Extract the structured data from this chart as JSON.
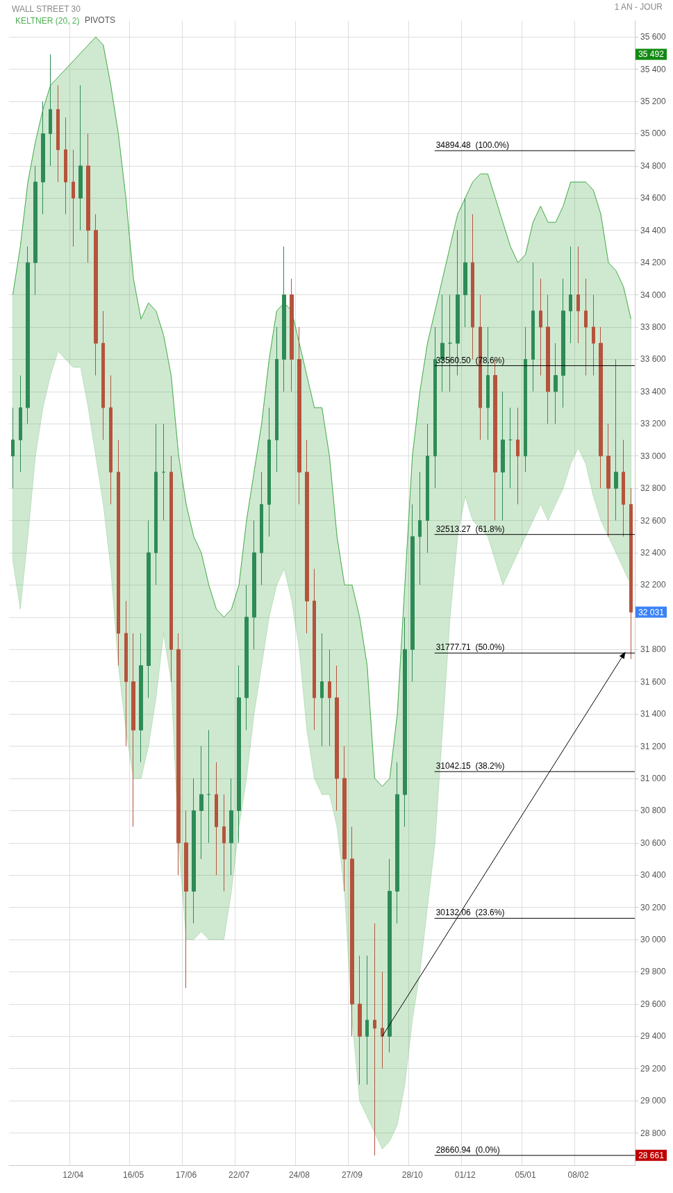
{
  "chart_data": {
    "type": "candlestick",
    "title": "WALL STREET 30",
    "annotations": [
      "1 AN - JOUR",
      "PIVOTS",
      "35 492",
      "32 031",
      "28 661"
    ],
    "categories": [
      null,
      null,
      null,
      null,
      null,
      null,
      null,
      null,
      "12/04",
      null,
      null,
      null,
      null,
      null,
      null,
      null,
      "16/05",
      null,
      null,
      null,
      null,
      null,
      null,
      "17/06",
      null,
      null,
      null,
      null,
      null,
      null,
      "22/07",
      null,
      null,
      null,
      null,
      null,
      null,
      null,
      "24/08",
      null,
      null,
      null,
      null,
      null,
      null,
      "27/09",
      null,
      null,
      null,
      null,
      null,
      null,
      null,
      "28/10",
      null,
      null,
      null,
      null,
      null,
      null,
      "01/12",
      null,
      null,
      null,
      null,
      null,
      null,
      null,
      "05/01",
      null,
      null,
      null,
      null,
      null,
      null,
      "08/02",
      null,
      null,
      null,
      null,
      null,
      null,
      null
    ],
    "ohlc": [
      [
        33000,
        33300,
        32800,
        33100
      ],
      [
        33100,
        33500,
        32900,
        33300
      ],
      [
        33300,
        34300,
        33200,
        34200
      ],
      [
        34200,
        34800,
        34000,
        34700
      ],
      [
        34700,
        35200,
        34500,
        35000
      ],
      [
        35000,
        35492,
        34800,
        35150
      ],
      [
        35150,
        35300,
        34700,
        34900
      ],
      [
        34900,
        35100,
        34500,
        34700
      ],
      [
        34700,
        34900,
        34300,
        34600
      ],
      [
        34600,
        35300,
        34400,
        34800
      ],
      [
        34800,
        35000,
        34200,
        34400
      ],
      [
        34400,
        34500,
        33500,
        33700
      ],
      [
        33700,
        33900,
        33100,
        33300
      ],
      [
        33300,
        33500,
        32700,
        32900
      ],
      [
        32900,
        33100,
        31700,
        31900
      ],
      [
        31900,
        32100,
        31200,
        31600
      ],
      [
        31600,
        31900,
        30700,
        31300
      ],
      [
        31300,
        31900,
        31100,
        31700
      ],
      [
        31700,
        32600,
        31500,
        32400
      ],
      [
        32400,
        33200,
        32200,
        32900
      ],
      [
        32900,
        33200,
        32600,
        32900
      ],
      [
        32900,
        33000,
        31600,
        31800
      ],
      [
        31800,
        31900,
        30400,
        30600
      ],
      [
        30600,
        30800,
        29700,
        30300
      ],
      [
        30300,
        31000,
        30100,
        30800
      ],
      [
        30800,
        31200,
        30500,
        30900
      ],
      [
        30900,
        31300,
        30600,
        30900
      ],
      [
        30900,
        31100,
        30400,
        30700
      ],
      [
        30700,
        30900,
        30300,
        30600
      ],
      [
        30600,
        31000,
        30400,
        30800
      ],
      [
        30800,
        31700,
        30600,
        31500
      ],
      [
        31500,
        32200,
        31300,
        32000
      ],
      [
        32000,
        32600,
        31800,
        32400
      ],
      [
        32400,
        32900,
        32200,
        32700
      ],
      [
        32700,
        33300,
        32500,
        33100
      ],
      [
        33100,
        33800,
        32900,
        33600
      ],
      [
        33600,
        34300,
        33400,
        34000
      ],
      [
        34000,
        34100,
        33400,
        33600
      ],
      [
        33600,
        33800,
        32700,
        32900
      ],
      [
        32900,
        33100,
        31900,
        32100
      ],
      [
        32100,
        32300,
        31300,
        31500
      ],
      [
        31500,
        31900,
        31200,
        31600
      ],
      [
        31600,
        31800,
        31200,
        31500
      ],
      [
        31500,
        31700,
        30800,
        31000
      ],
      [
        31000,
        31200,
        30300,
        30500
      ],
      [
        30500,
        30700,
        29400,
        29600
      ],
      [
        29600,
        29900,
        29100,
        29400
      ],
      [
        29400,
        29900,
        29100,
        29500
      ],
      [
        29500,
        30100,
        28661,
        29450
      ],
      [
        29450,
        29800,
        29200,
        29400
      ],
      [
        29400,
        30500,
        29300,
        30300
      ],
      [
        30300,
        31100,
        30100,
        30900
      ],
      [
        30900,
        32000,
        30700,
        31800
      ],
      [
        31800,
        32700,
        31600,
        32500
      ],
      [
        32500,
        32900,
        32200,
        32600
      ],
      [
        32600,
        33200,
        32400,
        33000
      ],
      [
        33000,
        33800,
        32800,
        33600
      ],
      [
        33600,
        34000,
        33400,
        33700
      ],
      [
        33700,
        34000,
        33400,
        33700
      ],
      [
        33700,
        34400,
        33500,
        34000
      ],
      [
        34000,
        34600,
        33800,
        34200
      ],
      [
        34200,
        34500,
        33600,
        33800
      ],
      [
        33800,
        34000,
        33100,
        33300
      ],
      [
        33300,
        33800,
        33100,
        33500
      ],
      [
        33500,
        33600,
        32600,
        32900
      ],
      [
        32900,
        33400,
        32600,
        33100
      ],
      [
        33100,
        33300,
        32800,
        33100
      ],
      [
        33100,
        33300,
        32700,
        33000
      ],
      [
        33000,
        33800,
        32900,
        33600
      ],
      [
        33600,
        34200,
        33400,
        33900
      ],
      [
        33900,
        34100,
        33500,
        33800
      ],
      [
        33800,
        34000,
        33200,
        33400
      ],
      [
        33400,
        33700,
        33200,
        33500
      ],
      [
        33500,
        34100,
        33300,
        33900
      ],
      [
        33900,
        34300,
        33700,
        34000
      ],
      [
        34000,
        34300,
        33700,
        33900
      ],
      [
        33900,
        34100,
        33500,
        33800
      ],
      [
        33800,
        34000,
        33500,
        33700
      ],
      [
        33700,
        33800,
        32800,
        33000
      ],
      [
        33000,
        33200,
        32500,
        32800
      ],
      [
        32800,
        33600,
        32600,
        32900
      ],
      [
        32900,
        33100,
        32500,
        32700
      ],
      [
        32700,
        32800,
        31740,
        32031
      ]
    ],
    "colors": [
      "#2e8b57",
      "#2e8b57",
      "#2e8b57",
      "#2e8b57",
      "#2e8b57",
      "#2e8b57",
      "#b5533c",
      "#b5533c",
      "#b5533c",
      "#2e8b57",
      "#b5533c",
      "#b5533c",
      "#b5533c",
      "#b5533c",
      "#b5533c",
      "#b5533c",
      "#b5533c",
      "#2e8b57",
      "#2e8b57",
      "#2e8b57",
      "#2e8b57",
      "#b5533c",
      "#b5533c",
      "#b5533c",
      "#2e8b57",
      "#2e8b57",
      "#2e8b57",
      "#b5533c",
      "#b5533c",
      "#2e8b57",
      "#2e8b57",
      "#2e8b57",
      "#2e8b57",
      "#2e8b57",
      "#2e8b57",
      "#2e8b57",
      "#2e8b57",
      "#b5533c",
      "#b5533c",
      "#b5533c",
      "#b5533c",
      "#2e8b57",
      "#b5533c",
      "#b5533c",
      "#b5533c",
      "#b5533c",
      "#b5533c",
      "#2e8b57",
      "#b5533c",
      "#b5533c",
      "#2e8b57",
      "#2e8b57",
      "#2e8b57",
      "#2e8b57",
      "#2e8b57",
      "#2e8b57",
      "#2e8b57",
      "#2e8b57",
      "#2e8b57",
      "#2e8b57",
      "#2e8b57",
      "#b5533c",
      "#b5533c",
      "#2e8b57",
      "#b5533c",
      "#2e8b57",
      "#2e8b57",
      "#b5533c",
      "#2e8b57",
      "#2e8b57",
      "#b5533c",
      "#b5533c",
      "#2e8b57",
      "#2e8b57",
      "#2e8b57",
      "#b5533c",
      "#b5533c",
      "#b5533c",
      "#b5533c",
      "#b5533c",
      "#2e8b57",
      "#b5533c",
      "#b5533c"
    ],
    "series": [
      {
        "name": "KELTNER (20, 2)",
        "type": "line",
        "color": "#4caf50",
        "values": [
          34000,
          34300,
          34700,
          34950,
          35150,
          35300,
          35350,
          35400,
          35450,
          35500,
          35550,
          35600,
          35550,
          35300,
          35000,
          34600,
          34100,
          33850,
          33950,
          33900,
          33750,
          33500,
          33000,
          32700,
          32500,
          32400,
          32200,
          32050,
          32000,
          32050,
          32200,
          32600,
          32900,
          33200,
          33600,
          33900,
          33950,
          33900,
          33700,
          33500,
          33300,
          33300,
          33000,
          32500,
          32200,
          32200,
          32000,
          31700,
          31000,
          30950,
          31000,
          31400,
          32200,
          33000,
          33400,
          33700,
          33900,
          34100,
          34300,
          34500,
          34600,
          34700,
          34750,
          34750,
          34600,
          34450,
          34300,
          34200,
          34250,
          34450,
          34550,
          34450,
          34450,
          34550,
          34700,
          34700,
          34700,
          34650,
          34500,
          34200,
          34150,
          34050,
          33850
        ],
        "upper": [
          34000,
          34300,
          34700,
          34950,
          35150,
          35300,
          35350,
          35400,
          35450,
          35500,
          35550,
          35600,
          35550,
          35300,
          35000,
          34600,
          34100,
          33850,
          33950,
          33900,
          33750,
          33500,
          33000,
          32700,
          32500,
          32400,
          32200,
          32050,
          32000,
          32050,
          32200,
          32600,
          32900,
          33200,
          33600,
          33900,
          33950,
          33900,
          33700,
          33500,
          33300,
          33300,
          33000,
          32500,
          32200,
          32200,
          32000,
          31700,
          31000,
          30950,
          31000,
          31400,
          32200,
          33000,
          33400,
          33700,
          33900,
          34100,
          34300,
          34500,
          34600,
          34700,
          34750,
          34750,
          34600,
          34450,
          34300,
          34200,
          34250,
          34450,
          34550,
          34450,
          34450,
          34550,
          34700,
          34700,
          34700,
          34650,
          34500,
          34200,
          34150,
          34050,
          33850
        ],
        "lower": [
          32350,
          32050,
          32500,
          33000,
          33300,
          33500,
          33650,
          33600,
          33550,
          33550,
          33300,
          33000,
          32700,
          32300,
          31700,
          31300,
          31000,
          31000,
          31200,
          31500,
          31900,
          31600,
          30600,
          30000,
          30000,
          30050,
          30000,
          30000,
          30000,
          30300,
          30700,
          31000,
          31400,
          31700,
          32000,
          32200,
          32300,
          32100,
          31800,
          31300,
          31000,
          30900,
          30900,
          30700,
          30300,
          29500,
          29000,
          28900,
          28800,
          28700,
          28750,
          28850,
          29100,
          29500,
          29800,
          30200,
          30600,
          31300,
          32000,
          32500,
          32750,
          32600,
          32550,
          32500,
          32350,
          32200,
          32300,
          32400,
          32500,
          32600,
          32700,
          32600,
          32700,
          32800,
          32950,
          33050,
          32950,
          32750,
          32600,
          32500,
          32400,
          32300,
          32200
        ]
      }
    ],
    "ref_lines": [
      {
        "axis": "y",
        "value": 34894.48,
        "label": "34894.48  (100.0%)"
      },
      {
        "axis": "y",
        "value": 33560.5,
        "label": "33560.50  (78.6%)"
      },
      {
        "axis": "y",
        "value": 32513.27,
        "label": "32513.27  (61.8%)"
      },
      {
        "axis": "y",
        "value": 31777.71,
        "label": "31777.71  (50.0%)"
      },
      {
        "axis": "y",
        "value": 31042.15,
        "label": "31042.15  (38.2%)"
      },
      {
        "axis": "y",
        "value": 30132.06,
        "label": "30132.06  (23.6%)"
      },
      {
        "axis": "y",
        "value": 28660.94,
        "label": "28660.94  (0.0%)"
      }
    ],
    "ylim": [
      28600,
      35700
    ],
    "yticks": [
      {
        "value": 28800,
        "label": "28 800"
      },
      {
        "value": 29000,
        "label": "29 000"
      },
      {
        "value": 29200,
        "label": "29 200"
      },
      {
        "value": 29400,
        "label": "29 400"
      },
      {
        "value": 29600,
        "label": "29 600"
      },
      {
        "value": 29800,
        "label": "29 800"
      },
      {
        "value": 30000,
        "label": "30 000"
      },
      {
        "value": 30200,
        "label": "30 200"
      },
      {
        "value": 30400,
        "label": "30 400"
      },
      {
        "value": 30600,
        "label": "30 600"
      },
      {
        "value": 30800,
        "label": "30 800"
      },
      {
        "value": 31000,
        "label": "31 000"
      },
      {
        "value": 31200,
        "label": "31 200"
      },
      {
        "value": 31400,
        "label": "31 400"
      },
      {
        "value": 31600,
        "label": "31 600"
      },
      {
        "value": 31800,
        "label": "31 800"
      },
      {
        "value": 32000,
        "label": null
      },
      {
        "value": 32200,
        "label": "32 200"
      },
      {
        "value": 32400,
        "label": "32 400"
      },
      {
        "value": 32600,
        "label": "32 600"
      },
      {
        "value": 32800,
        "label": "32 800"
      },
      {
        "value": 33000,
        "label": "33 000"
      },
      {
        "value": 33200,
        "label": "33 200"
      },
      {
        "value": 33400,
        "label": "33 400"
      },
      {
        "value": 33600,
        "label": "33 600"
      },
      {
        "value": 33800,
        "label": "33 800"
      },
      {
        "value": 34000,
        "label": "34 000"
      },
      {
        "value": 34200,
        "label": "34 200"
      },
      {
        "value": 34400,
        "label": "34 400"
      },
      {
        "value": 34600,
        "label": "34 600"
      },
      {
        "value": 34800,
        "label": "34 800"
      },
      {
        "value": 35000,
        "label": "35 000"
      },
      {
        "value": 35200,
        "label": "35 200"
      },
      {
        "value": 35400,
        "label": "35 400"
      },
      {
        "value": 35600,
        "label": "35 600"
      }
    ],
    "grid": true,
    "legend": "top left"
  }
}
